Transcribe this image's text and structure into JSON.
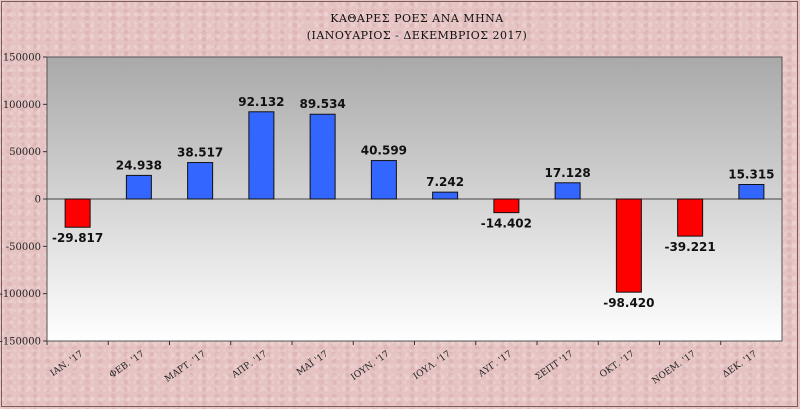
{
  "chart_data": {
    "type": "bar",
    "title_line1": "ΚΑΘΑΡΕΣ ΡΟΕΣ ΑΝΑ ΜΗΝΑ",
    "title_line2": "(ΙΑΝΟΥΑΡΙΟΣ  -  ΔΕΚΕΜΒΡΙΟΣ  2017)",
    "categories": [
      "ΙΑΝ. '17",
      "ΦΕΒ. '17",
      "ΜΑΡΤ. '17",
      "ΑΠΡ. '17",
      "ΜΑΪ '17",
      "ΙΟΥΝ. '17",
      "ΙΟΥΛ. '17",
      "ΑΥΓ. '17",
      "ΣΕΠΤ '17",
      "ΟΚΤ. '17",
      "ΝΟΕΜ. '17",
      "ΔΕΚ. '17"
    ],
    "values": [
      -29817,
      24938,
      38517,
      92132,
      89534,
      40599,
      7242,
      -14402,
      17128,
      -98420,
      -39221,
      15315
    ],
    "data_labels": [
      "-29.817",
      "24.938",
      "38.517",
      "92.132",
      "89.534",
      "40.599",
      "7.242",
      "-14.402",
      "17.128",
      "-98.420",
      "-39.221",
      "15.315"
    ],
    "ylim": [
      -150000,
      150000
    ],
    "yticks": [
      150000,
      100000,
      50000,
      0,
      -50000,
      -100000,
      -150000
    ],
    "ytick_labels": [
      "150000",
      "100000",
      "50000",
      "0",
      "-50000",
      "-100000",
      "-150000"
    ],
    "grid": false,
    "legend": "none",
    "colors": {
      "positive": "#3366ff",
      "negative": "#ff0000",
      "plot_top": "#a9a9a9",
      "plot_bottom": "#ffffff"
    }
  }
}
